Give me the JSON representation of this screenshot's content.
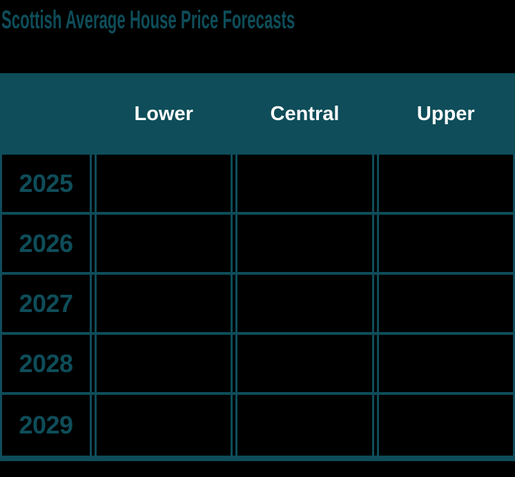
{
  "page": {
    "background_color": "#000000",
    "accent_color": "#0e4d59",
    "header_text_color": "#ffffff"
  },
  "title": "Scottish Average House Price Forecasts",
  "chart_data": {
    "type": "table",
    "title": "Scottish Average House Price Forecasts",
    "columns": [
      "Lower",
      "Central",
      "Upper"
    ],
    "row_labels": [
      "2025",
      "2026",
      "2027",
      "2028",
      "2029"
    ],
    "cells": [
      [
        "",
        "",
        ""
      ],
      [
        "",
        "",
        ""
      ],
      [
        "",
        "",
        ""
      ],
      [
        "",
        "",
        ""
      ],
      [
        "",
        "",
        ""
      ]
    ]
  }
}
